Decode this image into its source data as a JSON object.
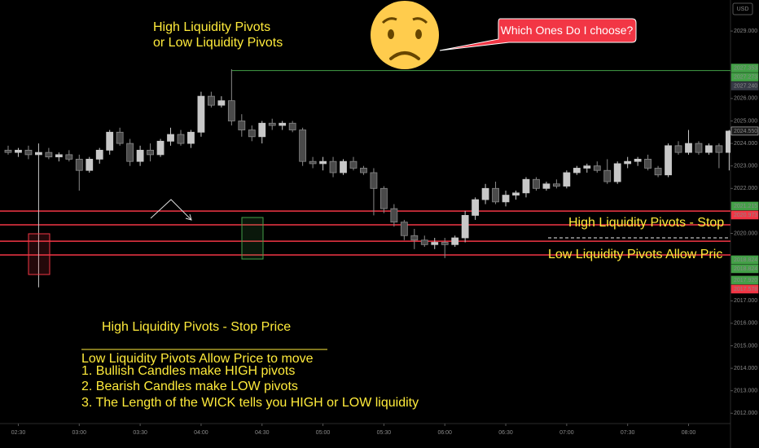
{
  "chart_data": {
    "type": "candlestick",
    "currency": "USD",
    "categories": [
      null,
      "02:30",
      null,
      null,
      null,
      null,
      null,
      "03:00",
      null,
      null,
      null,
      null,
      null,
      "03:30",
      null,
      null,
      null,
      null,
      null,
      "04:00",
      null,
      null,
      null,
      null,
      null,
      "04:30",
      null,
      null,
      null,
      null,
      null,
      "05:00",
      null,
      null,
      null,
      null,
      null,
      "05:30",
      null,
      null,
      null,
      null,
      null,
      "06:00",
      null,
      null,
      null,
      null,
      null,
      "06:30",
      null,
      null,
      null,
      null,
      null,
      "07:00",
      null,
      null,
      null,
      null,
      null,
      "07:30",
      null,
      null,
      null,
      null,
      null,
      "08:00",
      null,
      null,
      null,
      null
    ],
    "open": [
      2023.7,
      2023.6,
      2023.7,
      2023.5,
      2023.6,
      2023.4,
      2023.5,
      2023.3,
      2022.8,
      2023.3,
      2023.7,
      2024.5,
      2024.0,
      2023.2,
      2023.7,
      2023.5,
      2024.1,
      2024.4,
      2024.0,
      2024.5,
      2026.1,
      2025.7,
      2025.9,
      2025.0,
      2024.6,
      2024.3,
      2024.9,
      2024.8,
      2024.9,
      2024.6,
      2023.2,
      2023.1,
      2023.2,
      2022.7,
      2023.2,
      2022.9,
      2022.7,
      2022.0,
      2021.1,
      2020.5,
      2019.9,
      2019.7,
      2019.5,
      2019.6,
      2019.5,
      2019.8,
      2020.8,
      2021.5,
      2022.0,
      2021.4,
      2021.7,
      2021.8,
      2022.4,
      2022.0,
      2022.2,
      2022.1,
      2022.7,
      2022.9,
      2023.0,
      2022.8,
      2022.3,
      2023.1,
      2023.2,
      2023.3,
      2022.9,
      2022.6,
      2023.9,
      2023.6,
      2024.0,
      2023.6,
      2023.9,
      2023.6
    ],
    "high": [
      2023.9,
      2023.8,
      2023.9,
      2024.0,
      2023.8,
      2023.6,
      2023.7,
      2023.5,
      2023.4,
      2023.8,
      2024.6,
      2024.7,
      2024.2,
      2023.9,
      2024.0,
      2024.2,
      2024.7,
      2024.6,
      2024.6,
      2026.3,
      2026.3,
      2026.1,
      2027.3,
      2025.3,
      2024.8,
      2025.0,
      2025.1,
      2025.0,
      2025.0,
      2024.7,
      2023.4,
      2023.4,
      2023.4,
      2023.3,
      2023.4,
      2023.0,
      2022.9,
      2022.1,
      2021.3,
      2020.6,
      2020.2,
      2019.9,
      2019.8,
      2019.8,
      2019.9,
      2021.0,
      2021.6,
      2022.2,
      2022.3,
      2021.9,
      2021.9,
      2022.5,
      2022.5,
      2022.3,
      2022.4,
      2022.8,
      2023.0,
      2023.1,
      2023.2,
      2023.3,
      2023.2,
      2023.4,
      2023.4,
      2023.5,
      2023.0,
      2024.0,
      2024.1,
      2024.6,
      2024.1,
      2024.0,
      2024.0,
      2024.6
    ],
    "low": [
      2023.5,
      2023.4,
      2023.3,
      2017.6,
      2023.3,
      2023.2,
      2023.2,
      2021.9,
      2022.7,
      2023.1,
      2023.5,
      2023.9,
      2023.0,
      2023.0,
      2023.2,
      2023.4,
      2023.9,
      2023.9,
      2023.8,
      2024.3,
      2025.6,
      2025.6,
      2024.8,
      2024.3,
      2024.1,
      2024.0,
      2024.6,
      2024.6,
      2024.5,
      2023.0,
      2022.9,
      2022.8,
      2022.5,
      2022.6,
      2022.8,
      2022.6,
      2020.8,
      2020.9,
      2020.3,
      2019.7,
      2019.3,
      2019.4,
      2019.3,
      2018.9,
      2019.4,
      2019.6,
      2020.6,
      2021.3,
      2021.3,
      2021.2,
      2021.5,
      2021.6,
      2021.9,
      2021.9,
      2022.0,
      2022.0,
      2022.6,
      2022.7,
      2022.7,
      2022.2,
      2022.2,
      2022.9,
      2023.0,
      2022.8,
      2022.5,
      2022.5,
      2023.5,
      2023.5,
      2023.5,
      2023.5,
      2022.9,
      2022.8
    ],
    "close": [
      2023.6,
      2023.7,
      2023.5,
      2023.6,
      2023.4,
      2023.5,
      2023.3,
      2022.8,
      2023.3,
      2023.7,
      2024.5,
      2024.0,
      2023.2,
      2023.7,
      2023.5,
      2024.1,
      2024.4,
      2024.0,
      2024.5,
      2026.1,
      2025.7,
      2025.9,
      2025.0,
      2024.6,
      2024.3,
      2024.9,
      2024.8,
      2024.9,
      2024.6,
      2023.2,
      2023.1,
      2023.2,
      2022.7,
      2023.2,
      2022.9,
      2022.7,
      2022.0,
      2021.1,
      2020.5,
      2019.9,
      2019.7,
      2019.5,
      2019.6,
      2019.5,
      2019.8,
      2020.8,
      2021.5,
      2022.0,
      2021.4,
      2021.7,
      2021.8,
      2022.4,
      2022.0,
      2022.2,
      2022.1,
      2022.7,
      2022.9,
      2023.0,
      2022.8,
      2022.3,
      2023.1,
      2023.2,
      2023.3,
      2022.9,
      2022.6,
      2023.9,
      2023.6,
      2024.0,
      2023.6,
      2023.9,
      2023.6,
      2024.55
    ],
    "up_color": "#c8c8c8",
    "down_color": "#4a4a4a",
    "ylim": [
      2011.54,
      2030.38
    ],
    "yticks": [
      {
        "value": 2029,
        "label": "2029.000"
      },
      {
        "value": 2026,
        "label": "2026.000"
      },
      {
        "value": 2025,
        "label": "2025.000"
      },
      {
        "value": 2024,
        "label": "2024.000"
      },
      {
        "value": 2023,
        "label": "2023.000"
      },
      {
        "value": 2022,
        "label": "2022.000"
      },
      {
        "value": 2020,
        "label": "2020.000"
      },
      {
        "value": 2017,
        "label": "2017.000"
      },
      {
        "value": 2016,
        "label": "2016.000"
      },
      {
        "value": 2015,
        "label": "2015.000"
      },
      {
        "value": 2014,
        "label": "2014.000"
      },
      {
        "value": 2013,
        "label": "2013.000"
      },
      {
        "value": 2012,
        "label": "2012.000"
      }
    ],
    "price_labels": [
      {
        "value": 2027.353,
        "label": "2027.353",
        "color": "#43a047"
      },
      {
        "value": 2027.273,
        "label": "2027.273",
        "color": "#43a047"
      },
      {
        "value": 2027.24,
        "label": "2027.240",
        "color": "#363a45"
      },
      {
        "value": 2024.55,
        "label": "2024.550",
        "color": "#1a1a1a"
      },
      {
        "value": 2021.215,
        "label": "2021.215",
        "color": "#43a047"
      },
      {
        "value": 2020.973,
        "label": "2020.973",
        "color": "#f23645"
      },
      {
        "value": 2018.824,
        "label": "2018.824",
        "color": "#43a047"
      },
      {
        "value": 2018.824,
        "label": "2018.824",
        "color": "#43a047"
      },
      {
        "value": 2017.92,
        "label": "2017.920",
        "color": "#43a047"
      },
      {
        "value": 2017.578,
        "label": "2017.578",
        "color": "#f23645"
      }
    ],
    "levels": [
      {
        "value": 2020.99,
        "color": "#f23645"
      },
      {
        "value": 2020.38,
        "color": "#f23645"
      },
      {
        "value": 2019.65,
        "color": "#f23645"
      },
      {
        "value": 2019.04,
        "color": "#f23645"
      }
    ],
    "pivot_line": {
      "value": 2027.24,
      "color": "#43a047"
    }
  },
  "annotations": {
    "title_lines": [
      "High Liquidity Pivots",
      "or Low Liquidity Pivots"
    ],
    "bubble": "Which Ones Do I choose?",
    "right_high": "High Liquidity Pivots - Stop",
    "right_low": "Low Liquidity Pivots Allow Pric",
    "bottom_high": "High Liquidity Pivots - Stop Price",
    "bottom_low": "Low Liquidity Pivots Allow Price to move",
    "notes": [
      "1. Bullish Candles make HIGH pivots",
      "2. Bearish Candles make LOW pivots",
      "3. The Length of the WICK tells you HIGH or LOW liquidity"
    ]
  }
}
